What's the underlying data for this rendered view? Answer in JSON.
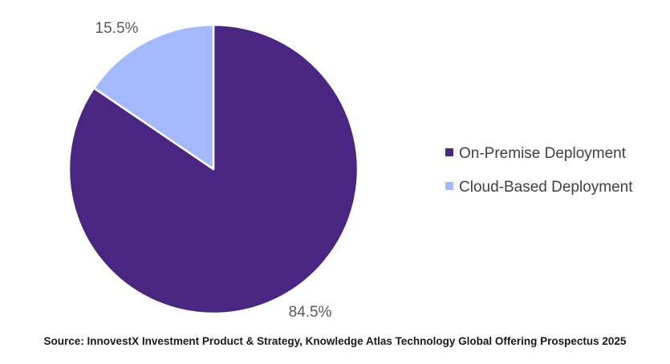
{
  "chart_data": {
    "type": "pie",
    "categories": [
      "On-Premise Deployment",
      "Cloud-Based Deployment"
    ],
    "values": [
      84.5,
      15.5
    ],
    "data_labels": [
      "84.5%",
      "15.5%"
    ],
    "colors": [
      "#4a2683",
      "#a4b8fd"
    ],
    "start": "12 o'clock, clockwise",
    "legend_position": "right"
  },
  "source": "Source: InnovestX Investment Product & Strategy, Knowledge Atlas Technology Global Offering Prospectus 2025"
}
